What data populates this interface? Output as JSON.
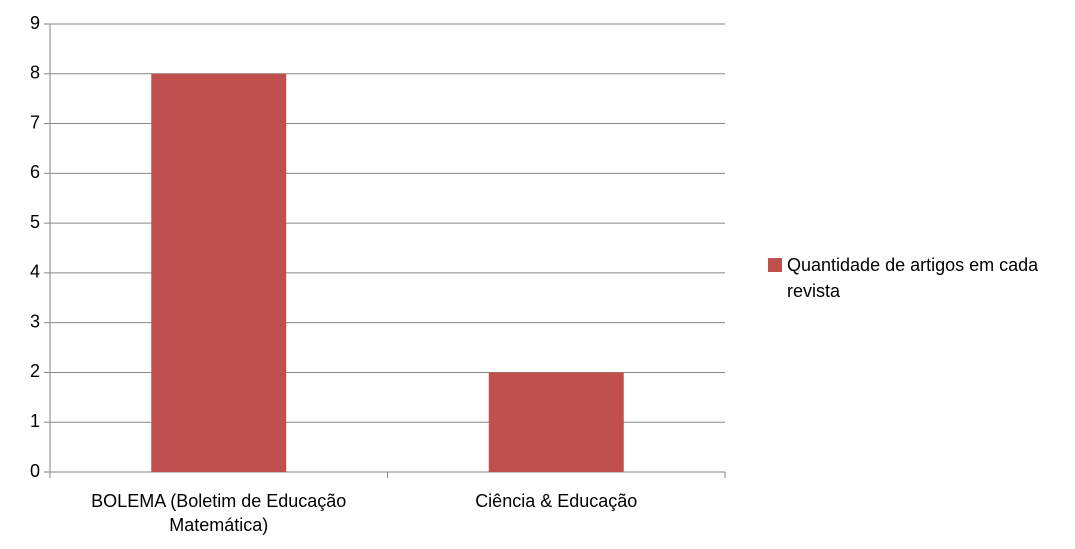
{
  "chart_data": {
    "type": "bar",
    "categories": [
      "BOLEMA (Boletim de Educação Matemática)",
      "Ciência & Educação"
    ],
    "series": [
      {
        "name": "Quantidade de artigos em cada revista",
        "color": "#c0504d",
        "values": [
          8,
          2
        ]
      }
    ],
    "ylim": [
      0,
      9
    ],
    "yticks": [
      0,
      1,
      2,
      3,
      4,
      5,
      6,
      7,
      8,
      9
    ],
    "grid": true,
    "legend": "right"
  }
}
